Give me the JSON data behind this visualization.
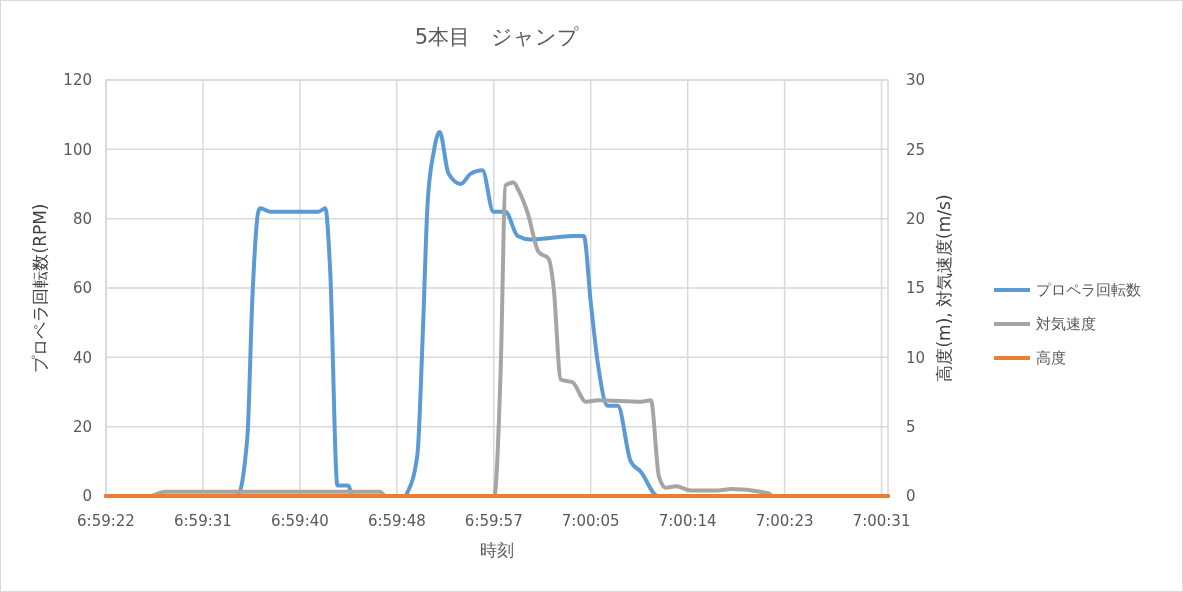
{
  "chart_data": {
    "type": "line",
    "title": "5本目　ジャンプ",
    "xlabel": "時刻",
    "ylabel": "プロペラ回転数(RPM)",
    "y2label": "高度(m), 対気速度(m/s)",
    "xlim": [
      6.98951,
      7.00887
    ],
    "xticks": [
      {
        "value": 6.98951,
        "label": "6:59:22"
      },
      {
        "value": 6.99191,
        "label": "6:59:31"
      },
      {
        "value": 6.99431,
        "label": "6:59:40"
      },
      {
        "value": 6.99671,
        "label": "6:59:48"
      },
      {
        "value": 6.99911,
        "label": "6:59:57"
      },
      {
        "value": 7.00151,
        "label": "7:00:05"
      },
      {
        "value": 7.00391,
        "label": "7:00:14"
      },
      {
        "value": 7.00631,
        "label": "7:00:23"
      },
      {
        "value": 7.00871,
        "label": "7:00:31"
      }
    ],
    "ylim": [
      0,
      120
    ],
    "yticks": [
      0,
      20,
      40,
      60,
      80,
      100,
      120
    ],
    "y2lim": [
      0,
      30
    ],
    "y2ticks": [
      0,
      5,
      10,
      15,
      20,
      25,
      30
    ],
    "grid": true,
    "legend": "right",
    "marker": "none",
    "line_style": "solid",
    "series": [
      {
        "name": "プロペラ回転数",
        "color": "#5b9bd5",
        "x": [
          6.98951,
          6.99276,
          6.99301,
          6.99313,
          6.99328,
          6.99333,
          6.99358,
          6.99477,
          6.99494,
          6.99506,
          6.99524,
          6.99551,
          6.99561,
          6.99692,
          6.99697,
          6.99722,
          6.99735,
          6.99747,
          6.99762,
          6.99777,
          6.99799,
          6.99829,
          6.99854,
          6.99883,
          6.9991,
          6.9994,
          6.9997,
          7.00002,
          7.00109,
          7.00134,
          7.00151,
          7.00169,
          7.00193,
          7.00218,
          7.0025,
          7.00275,
          7.00317,
          7.00887
        ],
        "values": [
          0,
          0,
          17,
          56,
          82,
          83,
          82,
          82,
          83,
          65,
          3,
          3,
          0,
          0,
          1,
          12,
          46,
          84,
          99,
          105,
          93,
          90,
          93,
          94,
          82,
          82,
          75,
          74,
          75,
          75,
          56,
          38,
          26,
          26,
          10,
          7,
          0,
          0
        ]
      },
      {
        "name": "対気速度",
        "color": "#a5a5a5",
        "axis": "y2",
        "x": [
          6.98951,
          6.9906,
          6.99097,
          6.9963,
          6.99643,
          6.99913,
          6.99915,
          6.99928,
          6.9994,
          6.9996,
          6.99973,
          6.99995,
          7.00022,
          7.00047,
          7.00059,
          7.00077,
          7.00106,
          7.00139,
          7.00169,
          7.00275,
          7.003,
          7.0032,
          7.00337,
          7.00362,
          7.00399,
          7.00466,
          7.00498,
          7.0059,
          7.00602,
          7.00887
        ],
        "values": [
          0,
          0,
          0.3,
          0.3,
          0,
          0,
          0.4,
          9,
          22.4,
          22.6,
          22,
          20.4,
          17.6,
          17.1,
          15.1,
          8.4,
          8.2,
          6.8,
          6.9,
          6.8,
          6.9,
          1.4,
          0.6,
          0.7,
          0.4,
          0.4,
          0.5,
          0.2,
          0,
          0
        ]
      },
      {
        "name": "高度",
        "color": "#ed7d31",
        "axis": "y2",
        "x": [
          6.98951,
          7.00887
        ],
        "values": [
          0,
          0
        ]
      }
    ]
  }
}
